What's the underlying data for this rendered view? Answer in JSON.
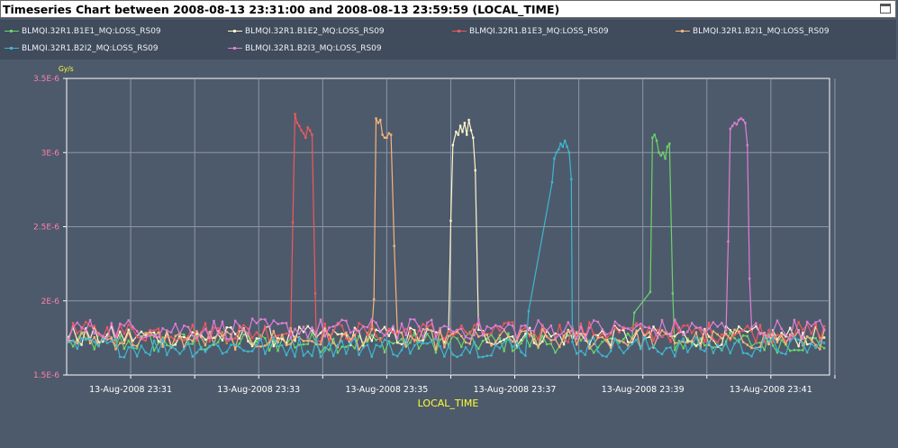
{
  "window": {
    "title": "Timeseries Chart between 2008-08-13 23:31:00 and 2008-08-13 23:59:59 (LOCAL_TIME)"
  },
  "chart_data": {
    "type": "line",
    "title": "Timeseries Chart between 2008-08-13 23:31:00 and 2008-08-13 23:59:59 (LOCAL_TIME)",
    "xlabel": "LOCAL_TIME",
    "ylabel": "Gy/s",
    "ylim": [
      1.5e-06,
      3.5e-06
    ],
    "xlim": [
      "2008-08-13 23:30:00",
      "2008-08-13 23:41:55"
    ],
    "grid": true,
    "legend_position": "top",
    "y_ticks": [
      "1.5E-6",
      "2E-6",
      "2.5E-6",
      "3E-6",
      "3.5E-6"
    ],
    "x_ticks": [
      "13-Aug-2008 23:31",
      "13-Aug-2008 23:33",
      "13-Aug-2008 23:35",
      "13-Aug-2008 23:37",
      "13-Aug-2008 23:39",
      "13-Aug-2008 23:41"
    ],
    "baseline": 1.75e-06,
    "series": [
      {
        "name": "BLMQI.32R1.B1E1_MQ:LOSS_RS09",
        "color": "#6cd36c",
        "baseline": 1.72e-06,
        "pulse": {
          "start": "23:39:07",
          "end": "23:39:30"
        },
        "values": [
          [
            "23:38:52",
            1.92e-06
          ],
          [
            "23:39:07",
            2.06e-06
          ],
          [
            "23:39:09",
            3.1e-06
          ],
          [
            "23:39:11",
            3.12e-06
          ],
          [
            "23:39:13",
            3.08e-06
          ],
          [
            "23:39:15",
            3e-06
          ],
          [
            "23:39:17",
            2.98e-06
          ],
          [
            "23:39:19",
            3e-06
          ],
          [
            "23:39:21",
            2.96e-06
          ],
          [
            "23:39:23",
            3.04e-06
          ],
          [
            "23:39:25",
            3.06e-06
          ],
          [
            "23:39:28",
            2.05e-06
          ]
        ]
      },
      {
        "name": "BLMQI.32R1.B1E2_MQ:LOSS_RS09",
        "color": "#fff5cc",
        "baseline": 1.76e-06,
        "pulse": {
          "start": "23:36:00",
          "end": "23:36:25"
        },
        "values": [
          [
            "23:36:00",
            2.54e-06
          ],
          [
            "23:36:02",
            3.05e-06
          ],
          [
            "23:36:05",
            3.14e-06
          ],
          [
            "23:36:07",
            3.12e-06
          ],
          [
            "23:36:09",
            3.18e-06
          ],
          [
            "23:36:11",
            3.14e-06
          ],
          [
            "23:36:13",
            3.2e-06
          ],
          [
            "23:36:15",
            3.12e-06
          ],
          [
            "23:36:17",
            3.22e-06
          ],
          [
            "23:36:19",
            3.15e-06
          ],
          [
            "23:36:21",
            3.1e-06
          ],
          [
            "23:36:23",
            2.88e-06
          ]
        ]
      },
      {
        "name": "BLMQI.32R1.B1E3_MQ:LOSS_RS09",
        "color": "#f0585e",
        "baseline": 1.79e-06,
        "pulse": {
          "start": "23:33:32",
          "end": "23:33:58"
        },
        "values": [
          [
            "23:33:32",
            2.53e-06
          ],
          [
            "23:33:34",
            3.26e-06
          ],
          [
            "23:33:36",
            3.2e-06
          ],
          [
            "23:33:38",
            3.18e-06
          ],
          [
            "23:33:40",
            3.15e-06
          ],
          [
            "23:33:42",
            3.13e-06
          ],
          [
            "23:33:44",
            3.1e-06
          ],
          [
            "23:33:46",
            3.17e-06
          ],
          [
            "23:33:48",
            3.15e-06
          ],
          [
            "23:33:50",
            3.12e-06
          ],
          [
            "23:33:53",
            2.05e-06
          ]
        ]
      },
      {
        "name": "BLMQI.32R1.B2I1_MQ:LOSS_RS09",
        "color": "#f7b37a",
        "baseline": 1.74e-06,
        "pulse": {
          "start": "23:34:48",
          "end": "23:35:13"
        },
        "values": [
          [
            "23:34:48",
            2.01e-06
          ],
          [
            "23:34:50",
            3.23e-06
          ],
          [
            "23:34:52",
            3.2e-06
          ],
          [
            "23:34:54",
            3.22e-06
          ],
          [
            "23:34:56",
            3.12e-06
          ],
          [
            "23:34:58",
            3.1e-06
          ],
          [
            "23:35:00",
            3.1e-06
          ],
          [
            "23:35:02",
            3.13e-06
          ],
          [
            "23:35:04",
            3.12e-06
          ],
          [
            "23:35:07",
            2.37e-06
          ]
        ]
      },
      {
        "name": "BLMQI.32R1.B2I2_MQ:LOSS_RS09",
        "color": "#3fb6cf",
        "baseline": 1.69e-06,
        "pulse": {
          "start": "23:37:35",
          "end": "23:37:58"
        },
        "values": [
          [
            "23:37:13",
            1.93e-06
          ],
          [
            "23:37:35",
            2.8e-06
          ],
          [
            "23:37:37",
            2.96e-06
          ],
          [
            "23:37:39",
            3e-06
          ],
          [
            "23:37:41",
            3.02e-06
          ],
          [
            "23:37:43",
            3.06e-06
          ],
          [
            "23:37:45",
            3.04e-06
          ],
          [
            "23:37:47",
            3.08e-06
          ],
          [
            "23:37:49",
            3.04e-06
          ],
          [
            "23:37:51",
            3e-06
          ],
          [
            "23:37:53",
            2.82e-06
          ]
        ]
      },
      {
        "name": "BLMQI.32R1.B2I3_MQ:LOSS_RS09",
        "color": "#e07ed6",
        "baseline": 1.81e-06,
        "pulse": {
          "start": "23:40:20",
          "end": "23:40:47"
        },
        "values": [
          [
            "23:40:20",
            2.4e-06
          ],
          [
            "23:40:22",
            3.16e-06
          ],
          [
            "23:40:24",
            3.18e-06
          ],
          [
            "23:40:26",
            3.2e-06
          ],
          [
            "23:40:28",
            3.19e-06
          ],
          [
            "23:40:30",
            3.22e-06
          ],
          [
            "23:40:32",
            3.23e-06
          ],
          [
            "23:40:34",
            3.22e-06
          ],
          [
            "23:40:36",
            3.2e-06
          ],
          [
            "23:40:38",
            3.05e-06
          ],
          [
            "23:40:40",
            2.15e-06
          ]
        ]
      }
    ]
  }
}
